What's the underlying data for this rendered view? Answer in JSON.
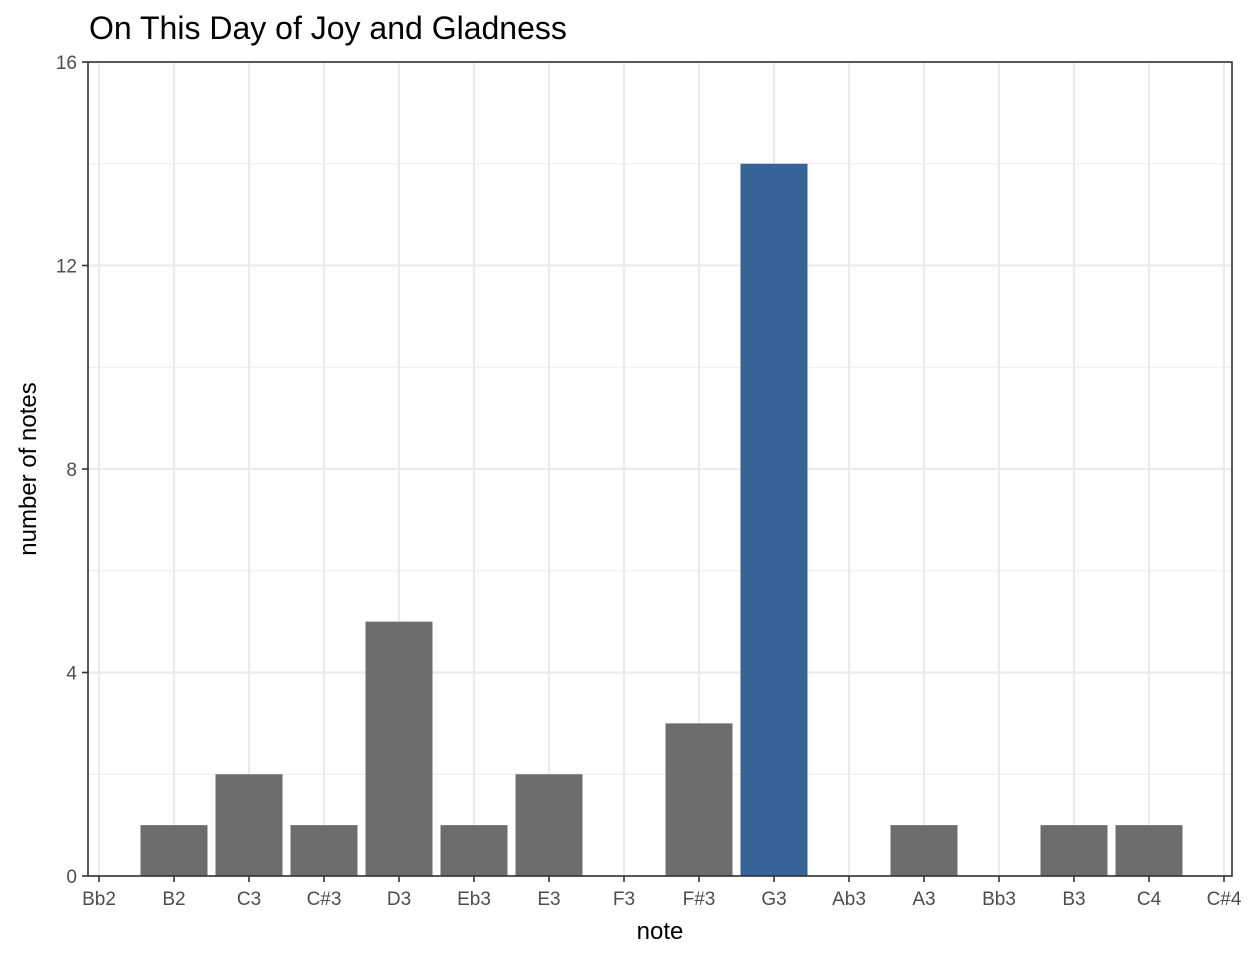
{
  "chart_data": {
    "type": "bar",
    "title": "On This Day of Joy and Gladness",
    "xlabel": "note",
    "ylabel": "number of notes",
    "categories": [
      "Bb2",
      "B2",
      "C3",
      "C#3",
      "D3",
      "Eb3",
      "E3",
      "F3",
      "F#3",
      "G3",
      "Ab3",
      "A3",
      "Bb3",
      "B3",
      "C4",
      "C#4"
    ],
    "values": [
      0,
      1,
      2,
      1,
      5,
      1,
      2,
      0,
      3,
      14,
      0,
      1,
      0,
      1,
      1,
      0
    ],
    "highlight_category": "G3",
    "ylim": [
      0,
      16
    ],
    "yticks": [
      0,
      4,
      8,
      12,
      16
    ],
    "grid": true,
    "colors": {
      "bar": "#6d6d6d",
      "highlight": "#376396",
      "grid": "#ebebeb",
      "axis": "#333333"
    }
  }
}
